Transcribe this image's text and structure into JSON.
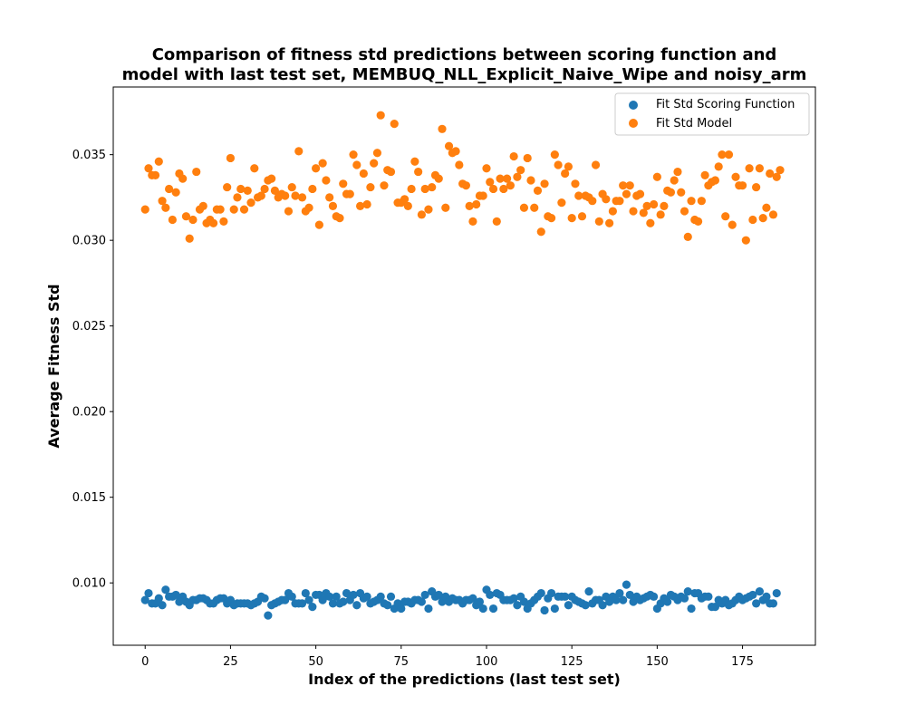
{
  "chart_data": {
    "type": "scatter",
    "title": [
      "Comparison of fitness std predictions between scoring function and",
      "model with last test set, MEMBUQ_NLL_Explicit_Naive_Wipe and noisy_arm"
    ],
    "xlabel": "Index of the predictions (last test set)",
    "ylabel": "Average Fitness Std",
    "xlim": [
      -9.35,
      196.35
    ],
    "ylim": [
      0.00636,
      0.03895
    ],
    "xticks": [
      0,
      25,
      50,
      75,
      100,
      125,
      150,
      175
    ],
    "xtick_labels": [
      "0",
      "25",
      "50",
      "75",
      "100",
      "125",
      "150",
      "175"
    ],
    "yticks": [
      0.01,
      0.015,
      0.02,
      0.025,
      0.03,
      0.035
    ],
    "ytick_labels": [
      "0.010",
      "0.015",
      "0.020",
      "0.025",
      "0.030",
      "0.035"
    ],
    "grid": false,
    "legend_position": "top-right",
    "colors": {
      "scoring": "#1f77b4",
      "model": "#ff7f0e"
    },
    "series": [
      {
        "name": "Fit Std Scoring Function",
        "color": "#1f77b4",
        "values": [
          0.009,
          0.0094,
          0.0088,
          0.0088,
          0.0091,
          0.0087,
          0.0096,
          0.0092,
          0.0092,
          0.0093,
          0.0089,
          0.0092,
          0.0089,
          0.0087,
          0.009,
          0.009,
          0.0091,
          0.0091,
          0.009,
          0.0088,
          0.0088,
          0.009,
          0.0091,
          0.0091,
          0.0088,
          0.009,
          0.0087,
          0.0088,
          0.0088,
          0.0088,
          0.0088,
          0.0087,
          0.0088,
          0.0089,
          0.0092,
          0.0091,
          0.0081,
          0.0087,
          0.0088,
          0.0089,
          0.009,
          0.009,
          0.0094,
          0.0092,
          0.0088,
          0.0088,
          0.0088,
          0.0094,
          0.009,
          0.0086,
          0.0093,
          0.0093,
          0.009,
          0.0094,
          0.0092,
          0.0088,
          0.0092,
          0.0088,
          0.0089,
          0.0094,
          0.009,
          0.0093,
          0.0087,
          0.0094,
          0.0091,
          0.0092,
          0.0088,
          0.0089,
          0.009,
          0.0092,
          0.0088,
          0.0087,
          0.0092,
          0.0085,
          0.0088,
          0.0085,
          0.0089,
          0.0089,
          0.0088,
          0.009,
          0.009,
          0.0089,
          0.0093,
          0.0085,
          0.0095,
          0.0092,
          0.0093,
          0.0089,
          0.0092,
          0.0089,
          0.0091,
          0.009,
          0.009,
          0.0088,
          0.009,
          0.009,
          0.0091,
          0.0087,
          0.0089,
          0.0085,
          0.0096,
          0.0093,
          0.0085,
          0.0094,
          0.0093,
          0.009,
          0.009,
          0.009,
          0.0091,
          0.0087,
          0.0092,
          0.0089,
          0.0085,
          0.0088,
          0.009,
          0.0092,
          0.0094,
          0.0084,
          0.0091,
          0.0094,
          0.0085,
          0.0092,
          0.0092,
          0.0092,
          0.0087,
          0.0092,
          0.009,
          0.0089,
          0.0088,
          0.0087,
          0.0095,
          0.0088,
          0.009,
          0.009,
          0.0087,
          0.0092,
          0.0089,
          0.0092,
          0.009,
          0.0094,
          0.009,
          0.0099,
          0.0093,
          0.0089,
          0.0092,
          0.009,
          0.0091,
          0.0092,
          0.0093,
          0.0092,
          0.0085,
          0.0088,
          0.0091,
          0.0089,
          0.0093,
          0.0092,
          0.009,
          0.0092,
          0.0091,
          0.0095,
          0.0085,
          0.0094,
          0.0094,
          0.0091,
          0.0092,
          0.0092,
          0.0086,
          0.0086,
          0.009,
          0.0088,
          0.009,
          0.0087,
          0.0088,
          0.009,
          0.0092,
          0.009,
          0.0091,
          0.0092,
          0.0093,
          0.0088,
          0.0095,
          0.009,
          0.0092,
          0.0088,
          0.0088,
          0.0094
        ]
      },
      {
        "name": "Fit Std Model",
        "color": "#ff7f0e",
        "values": [
          0.0318,
          0.0342,
          0.0338,
          0.0338,
          0.0346,
          0.0323,
          0.0319,
          0.033,
          0.0312,
          0.0328,
          0.0339,
          0.0336,
          0.0314,
          0.0301,
          0.0312,
          0.034,
          0.0318,
          0.032,
          0.031,
          0.0312,
          0.031,
          0.0318,
          0.0318,
          0.0311,
          0.0331,
          0.0348,
          0.0318,
          0.0325,
          0.033,
          0.0318,
          0.0329,
          0.0322,
          0.0342,
          0.0325,
          0.0326,
          0.033,
          0.0335,
          0.0336,
          0.0329,
          0.0325,
          0.0327,
          0.0326,
          0.0317,
          0.0331,
          0.0326,
          0.0352,
          0.0325,
          0.0317,
          0.0319,
          0.033,
          0.0342,
          0.0309,
          0.0345,
          0.0335,
          0.0325,
          0.032,
          0.0314,
          0.0313,
          0.0333,
          0.0327,
          0.0327,
          0.035,
          0.0344,
          0.032,
          0.0339,
          0.0321,
          0.0331,
          0.0345,
          0.0351,
          0.0373,
          0.0332,
          0.0341,
          0.034,
          0.0368,
          0.0322,
          0.0322,
          0.0324,
          0.032,
          0.033,
          0.0346,
          0.034,
          0.0315,
          0.033,
          0.0318,
          0.0331,
          0.0338,
          0.0336,
          0.0365,
          0.0319,
          0.0355,
          0.0351,
          0.0352,
          0.0344,
          0.0333,
          0.0332,
          0.032,
          0.0311,
          0.0321,
          0.0326,
          0.0326,
          0.0342,
          0.0334,
          0.033,
          0.0311,
          0.0336,
          0.033,
          0.0336,
          0.0332,
          0.0349,
          0.0337,
          0.0341,
          0.0319,
          0.0348,
          0.0335,
          0.0319,
          0.0329,
          0.0305,
          0.0333,
          0.0314,
          0.0313,
          0.035,
          0.0344,
          0.0322,
          0.0339,
          0.0343,
          0.0313,
          0.0333,
          0.0326,
          0.0314,
          0.0326,
          0.0325,
          0.0323,
          0.0344,
          0.0311,
          0.0327,
          0.0324,
          0.031,
          0.0317,
          0.0323,
          0.0323,
          0.0332,
          0.0327,
          0.0332,
          0.0317,
          0.0326,
          0.0327,
          0.0316,
          0.032,
          0.031,
          0.0321,
          0.0337,
          0.0315,
          0.032,
          0.0329,
          0.0328,
          0.0335,
          0.034,
          0.0328,
          0.0317,
          0.0302,
          0.0323,
          0.0312,
          0.0311,
          0.0323,
          0.0338,
          0.0332,
          0.0334,
          0.0335,
          0.0343,
          0.035,
          0.0314,
          0.035,
          0.0309,
          0.0337,
          0.0332,
          0.0332,
          0.03,
          0.0342,
          0.0312,
          0.0331,
          0.0342,
          0.0313,
          0.0319,
          0.0339,
          0.0315,
          0.0337,
          0.0341
        ]
      }
    ]
  }
}
